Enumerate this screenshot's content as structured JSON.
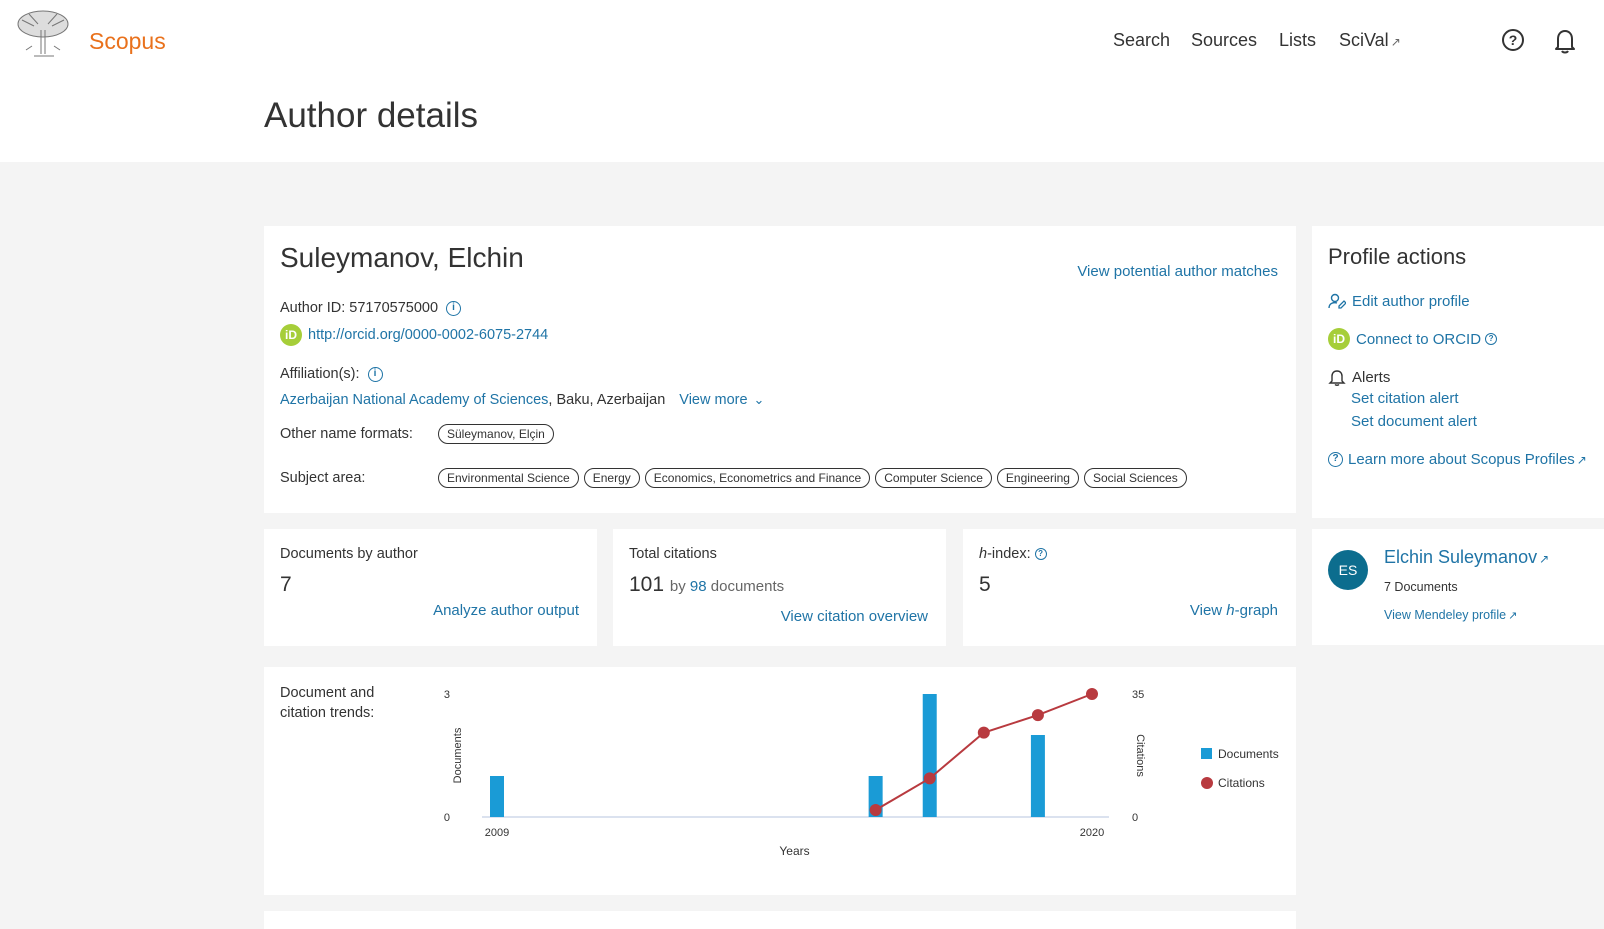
{
  "header": {
    "brand": "Scopus",
    "nav": {
      "search": "Search",
      "sources": "Sources",
      "lists": "Lists",
      "scival": "SciVal"
    },
    "icons": {
      "logo": "elsevier-tree-logo",
      "help": "question-circle-icon",
      "notifications": "bell-icon",
      "external": "arrow-up-right-icon"
    }
  },
  "page_title": "Author details",
  "author": {
    "name": "Suleymanov, Elchin",
    "potential_matches": "View potential author matches",
    "author_id_label": "Author ID: 57170575000",
    "orcid_url": "http://orcid.org/0000-0002-6075-2744",
    "affiliation_label": "Affiliation(s):",
    "affiliation_name": "Azerbaijan National Academy of Sciences",
    "affiliation_location": ", Baku, Azerbaijan",
    "view_more": "View more",
    "other_names_label": "Other name formats:",
    "other_names": [
      "Süleymanov, Elçin"
    ],
    "subject_label": "Subject area:",
    "subjects": [
      "Environmental Science",
      "Energy",
      "Economics, Econometrics and Finance",
      "Computer Science",
      "Engineering",
      "Social Sciences"
    ]
  },
  "stats": {
    "documents": {
      "label": "Documents by author",
      "value": "7",
      "link": "Analyze author output"
    },
    "citations": {
      "label": "Total citations",
      "value": "101",
      "by": "by",
      "docs_count": "98",
      "docs_word": "documents",
      "link": "View citation overview"
    },
    "hindex": {
      "label_italic": "h",
      "label_rest": "-index:",
      "value": "5",
      "link_pre": "View ",
      "link_italic": "h",
      "link_post": "-graph"
    }
  },
  "trends": {
    "label": "Document and citation trends:"
  },
  "chart_data": {
    "type": "bar",
    "x": [
      2009,
      2010,
      2011,
      2012,
      2013,
      2014,
      2015,
      2016,
      2017,
      2018,
      2019,
      2020
    ],
    "x_tick_labels": [
      "2009",
      "2020"
    ],
    "xlabel": "Years",
    "ylabel": "Documents",
    "y2label": "Citations",
    "ylim": [
      0,
      3
    ],
    "y2lim": [
      0,
      35
    ],
    "y_tick_labels": [
      "0",
      "3"
    ],
    "y2_tick_labels": [
      "0",
      "35"
    ],
    "series": [
      {
        "name": "Documents",
        "type": "bar",
        "color": "#1a9bd6",
        "values": [
          1,
          0,
          0,
          0,
          0,
          0,
          0,
          1,
          3,
          0,
          2,
          0
        ]
      },
      {
        "name": "Citations",
        "type": "line",
        "color": "#b83a3f",
        "values": [
          null,
          null,
          null,
          null,
          null,
          null,
          null,
          2,
          11,
          24,
          29,
          35
        ]
      }
    ],
    "legend": "right"
  },
  "profile_actions": {
    "title": "Profile actions",
    "edit": "Edit author profile",
    "orcid": "Connect to ORCID",
    "alerts": "Alerts",
    "citation_alert": "Set citation alert",
    "document_alert": "Set document alert",
    "learn_more": "Learn more about Scopus Profiles"
  },
  "mendeley": {
    "initials": "ES",
    "name": "Elchin Suleymanov",
    "documents": "7 Documents",
    "link": "View Mendeley profile"
  }
}
